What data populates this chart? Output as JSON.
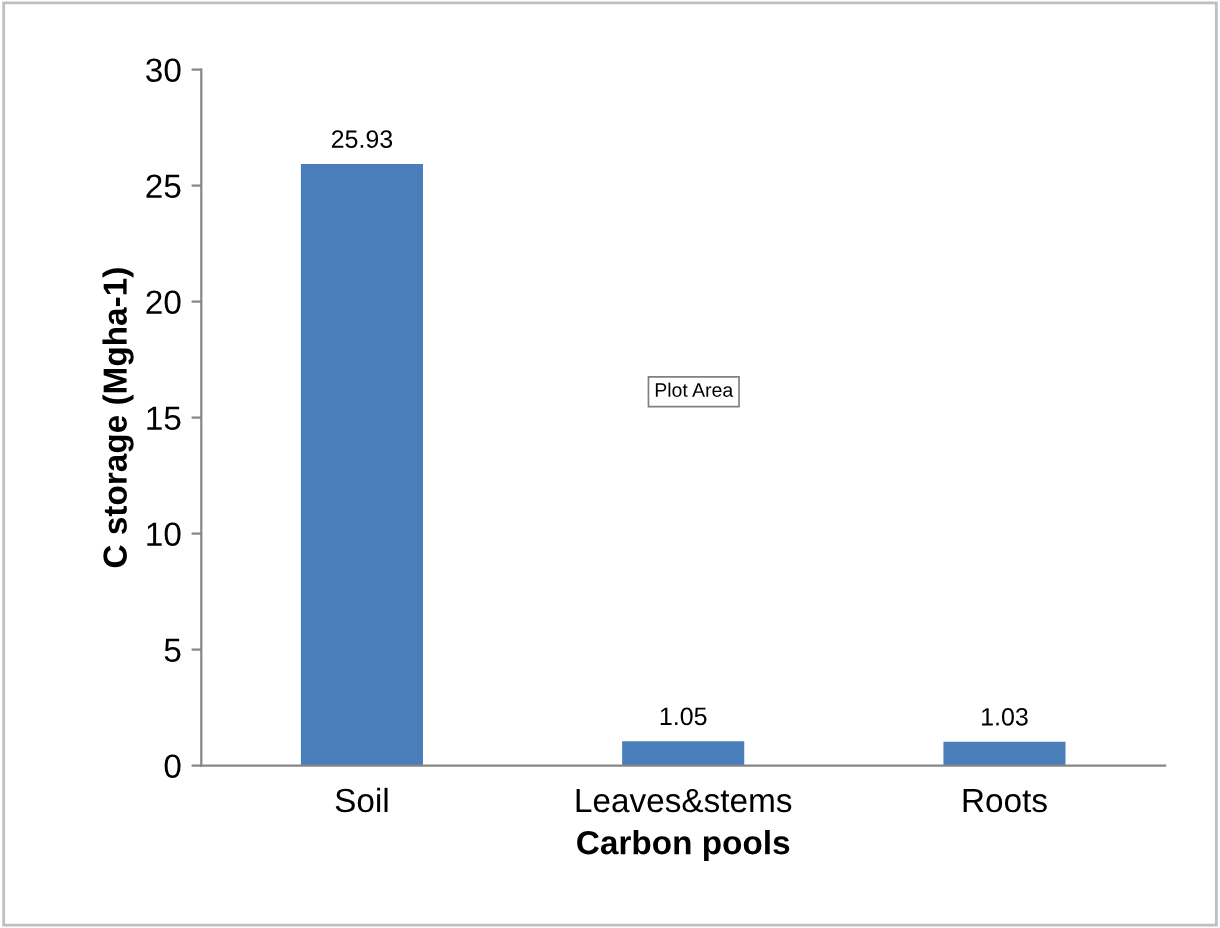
{
  "chart_data": {
    "type": "bar",
    "xlabel": "Carbon pools",
    "ylabel": "C storage (Mgha-1)",
    "categories": [
      "Soil",
      "Leaves&stems",
      "Roots"
    ],
    "values": [
      25.93,
      1.05,
      1.03
    ],
    "value_labels": [
      "25.93",
      "1.05",
      "1.03"
    ],
    "color": "#4a7ebb",
    "ylim": [
      0,
      30
    ],
    "yticks": [
      0,
      5,
      10,
      15,
      20,
      25,
      30
    ],
    "annotations": [
      "Plot Area"
    ],
    "grid": false,
    "legend": false
  }
}
